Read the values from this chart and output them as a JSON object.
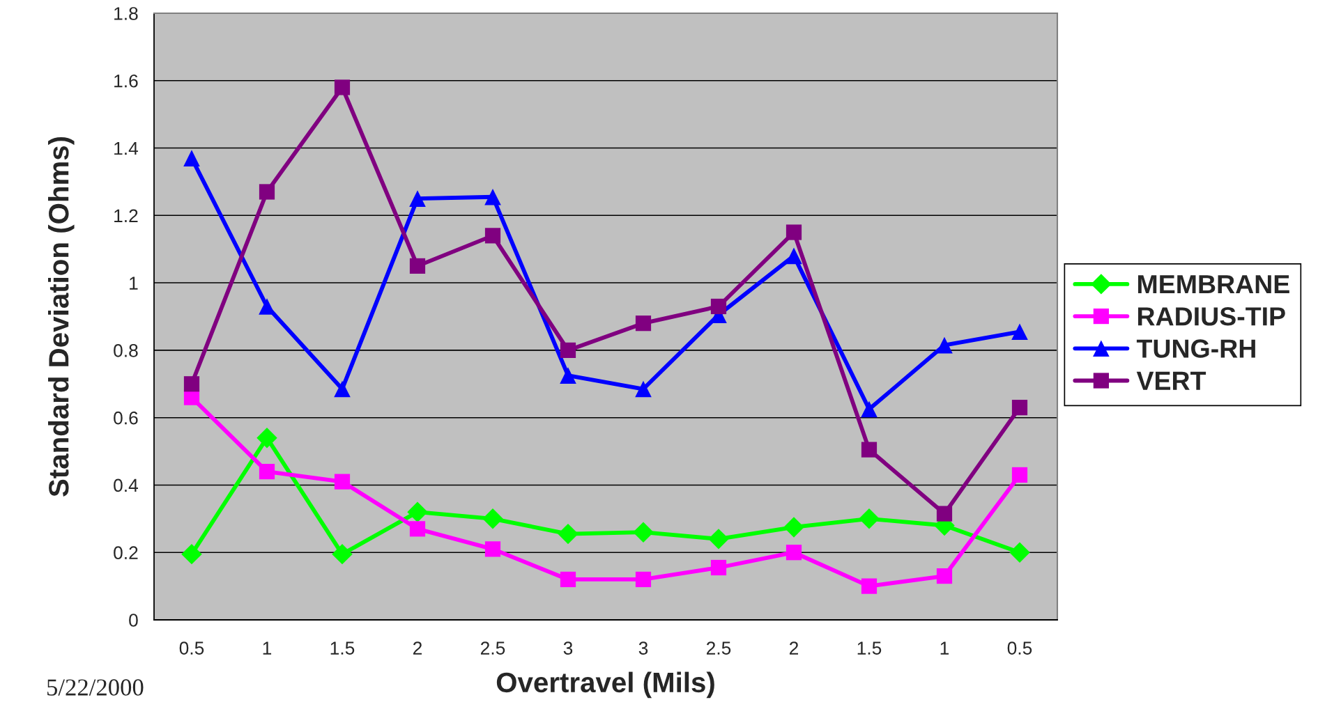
{
  "chart_data": {
    "type": "line",
    "xlabel": "Overtravel (Mils)",
    "ylabel": "Standard Deviation (Ohms)",
    "categories": [
      "0.5",
      "1",
      "1.5",
      "2",
      "2.5",
      "3",
      "3",
      "2.5",
      "2",
      "1.5",
      "1",
      "0.5"
    ],
    "series": [
      {
        "name": "MEMBRANE",
        "color": "#00ff00",
        "marker": "diamond",
        "values": [
          0.195,
          0.54,
          0.195,
          0.32,
          0.3,
          0.255,
          0.26,
          0.24,
          0.275,
          0.3,
          0.28,
          0.2
        ]
      },
      {
        "name": "RADIUS-TIP",
        "color": "#ff00ff",
        "marker": "square",
        "values": [
          0.66,
          0.44,
          0.41,
          0.27,
          0.21,
          0.12,
          0.12,
          0.155,
          0.2,
          0.1,
          0.13,
          0.43
        ]
      },
      {
        "name": "TUNG-RH",
        "color": "#0000ff",
        "marker": "triangle",
        "values": [
          1.37,
          0.93,
          0.685,
          1.25,
          1.255,
          0.725,
          0.685,
          0.905,
          1.08,
          0.625,
          0.815,
          0.855
        ]
      },
      {
        "name": "VERT",
        "color": "#800080",
        "marker": "square",
        "values": [
          0.7,
          1.27,
          1.58,
          1.05,
          1.14,
          0.8,
          0.88,
          0.93,
          1.15,
          0.505,
          0.315,
          0.63
        ]
      }
    ],
    "ylim": [
      0,
      1.8
    ],
    "yticks": [
      0,
      0.2,
      0.4,
      0.6,
      0.8,
      1,
      1.2,
      1.4,
      1.6,
      1.8
    ],
    "grid": "y",
    "legend": "right",
    "line_style": "solid",
    "annotations": [
      "5/22/2000"
    ]
  }
}
